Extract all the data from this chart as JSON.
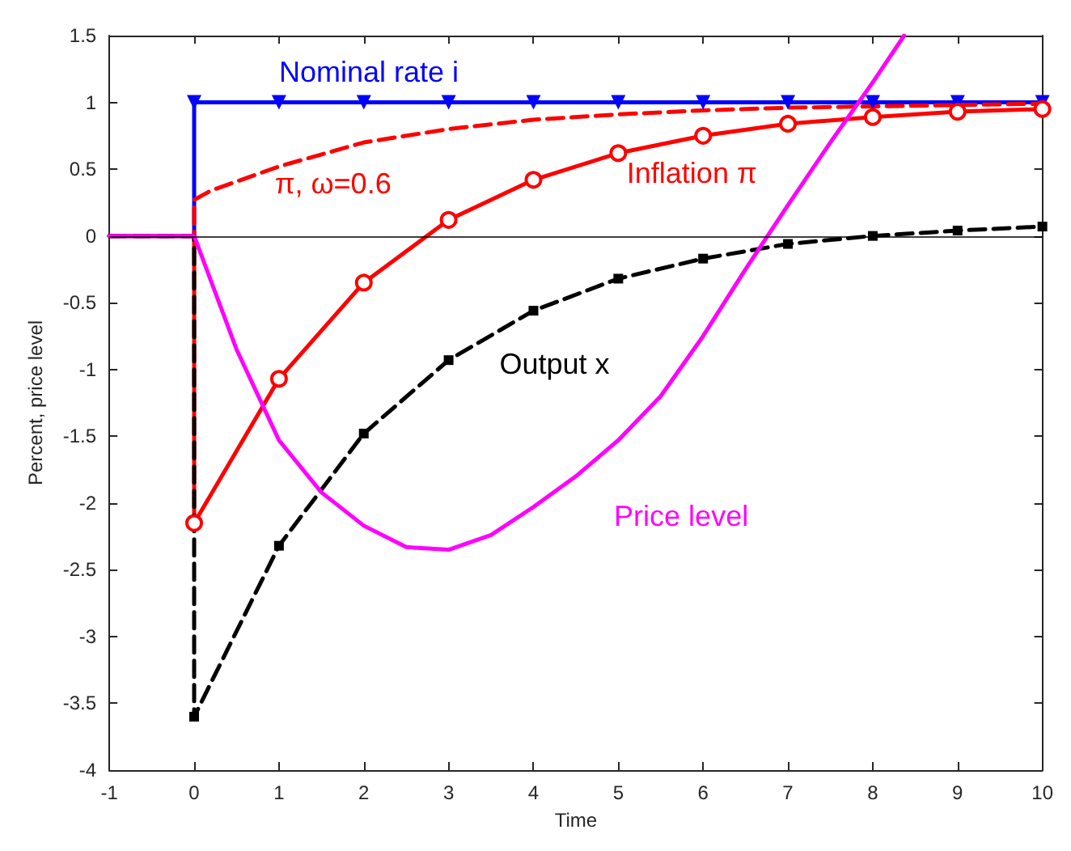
{
  "chart_data": {
    "type": "line",
    "xlabel": "Time",
    "ylabel": "Percent, price level",
    "xlim": [
      -1,
      10
    ],
    "ylim": [
      -4,
      1.5
    ],
    "xticks": [
      -1,
      0,
      1,
      2,
      3,
      4,
      5,
      6,
      7,
      8,
      9,
      10
    ],
    "yticks": [
      -4,
      -3.5,
      -3,
      -2.5,
      -2,
      -1.5,
      -1,
      -0.5,
      0,
      0.5,
      1,
      1.5
    ],
    "grid": false,
    "legend": false,
    "ref_lines": [
      {
        "axis": "y",
        "value": 0,
        "color": "#000000"
      }
    ],
    "series": [
      {
        "name": "Nominal rate i",
        "color": "#0000ff",
        "marker": "triangle",
        "line_style": "solid",
        "x": [
          -1,
          0,
          0,
          1,
          2,
          3,
          4,
          5,
          6,
          7,
          8,
          9,
          10
        ],
        "values": [
          0,
          0,
          1,
          1,
          1,
          1,
          1,
          1,
          1,
          1,
          1,
          1,
          1
        ]
      },
      {
        "name": "π, ω=0.6",
        "color": "#ff0000",
        "marker": "none",
        "line_style": "dashed",
        "x": [
          -1,
          0,
          0,
          0.2,
          1,
          2,
          3,
          4,
          5,
          6,
          7,
          8,
          9,
          10
        ],
        "values": [
          0,
          0,
          0.27,
          0.34,
          0.52,
          0.7,
          0.8,
          0.87,
          0.91,
          0.94,
          0.96,
          0.97,
          0.98,
          0.99
        ]
      },
      {
        "name": "Inflation π",
        "color": "#ff0000",
        "marker": "circle",
        "line_style": "solid",
        "x": [
          -1,
          0,
          0,
          1,
          2,
          3,
          4,
          5,
          6,
          7,
          8,
          9,
          10
        ],
        "values": [
          0,
          0,
          -2.15,
          -1.07,
          -0.35,
          0.12,
          0.42,
          0.62,
          0.75,
          0.84,
          0.89,
          0.93,
          0.95
        ]
      },
      {
        "name": "Output x",
        "color": "#000000",
        "marker": "square",
        "line_style": "dashed",
        "x": [
          -1,
          0,
          0,
          1,
          2,
          3,
          4,
          5,
          6,
          7,
          8,
          9,
          10
        ],
        "values": [
          0,
          0,
          -3.6,
          -2.32,
          -1.48,
          -0.93,
          -0.56,
          -0.32,
          -0.17,
          -0.06,
          0,
          0.04,
          0.07
        ]
      },
      {
        "name": "Price level",
        "color": "#ff00ff",
        "marker": "none",
        "line_style": "solid",
        "x": [
          -1,
          0,
          0.5,
          1,
          1.5,
          2,
          2.5,
          3,
          3.5,
          4,
          4.5,
          5,
          5.5,
          6,
          6.5,
          7,
          7.5,
          8,
          8.37
        ],
        "values": [
          0,
          0,
          -0.85,
          -1.53,
          -1.92,
          -2.17,
          -2.33,
          -2.35,
          -2.24,
          -2.03,
          -1.8,
          -1.53,
          -1.2,
          -0.75,
          -0.25,
          0.23,
          0.7,
          1.15,
          1.5
        ]
      }
    ]
  }
}
